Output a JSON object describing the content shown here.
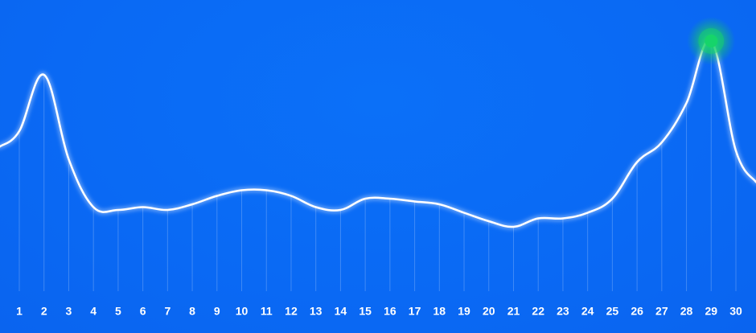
{
  "chart_data": {
    "type": "line",
    "x": [
      1,
      2,
      3,
      4,
      5,
      6,
      7,
      8,
      9,
      10,
      11,
      12,
      13,
      14,
      15,
      16,
      17,
      18,
      19,
      20,
      21,
      22,
      23,
      24,
      25,
      26,
      27,
      28,
      29,
      30
    ],
    "series": [
      {
        "values": [
          62,
          82,
          52,
          35,
          34,
          35,
          34,
          36,
          39,
          41,
          41,
          39,
          35,
          34,
          38,
          38,
          37,
          36,
          33,
          30,
          28,
          31,
          31,
          33,
          38,
          51,
          58,
          72,
          94,
          55
        ],
        "color": "#ffffff"
      }
    ],
    "xlabel": "",
    "ylabel": "",
    "ylim": [
      0,
      100
    ],
    "grid": false,
    "highlight": {
      "x": 29,
      "color": "#16d46a"
    },
    "background_color": "#0a6cf6"
  }
}
